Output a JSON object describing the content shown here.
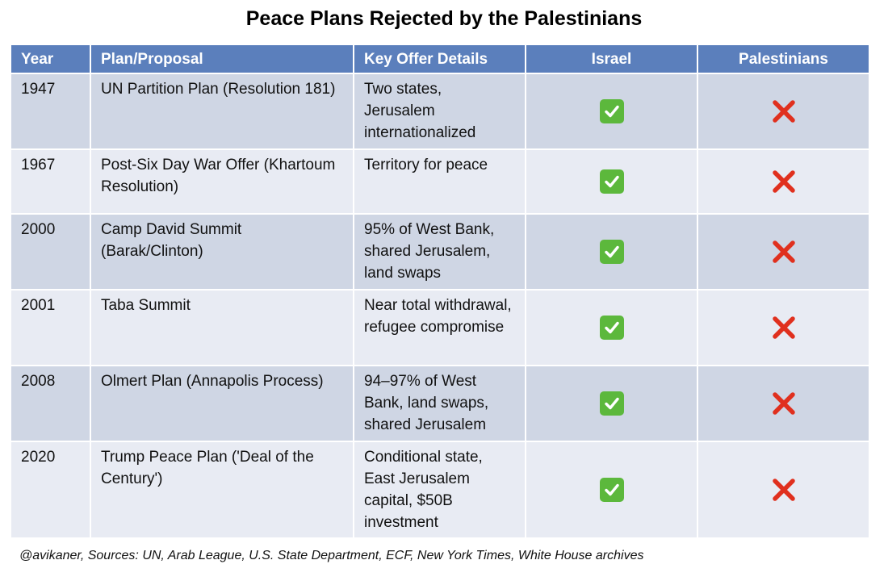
{
  "title": "Peace Plans Rejected by the Palestinians",
  "table": {
    "headers": [
      "Year",
      "Plan/Proposal",
      "Key Offer Details",
      "Israel",
      "Palestinians"
    ],
    "rows": [
      {
        "year": "1947",
        "plan": "UN Partition Plan (Resolution 181)",
        "details": "Two states, Jerusalem internationalized",
        "israel": "check-mark-icon",
        "palestinians": "cross-mark-icon"
      },
      {
        "year": "1967",
        "plan": "Post-Six Day War Offer (Khartoum Resolution)",
        "details": "Territory for peace",
        "israel": "check-mark-icon",
        "palestinians": "cross-mark-icon"
      },
      {
        "year": "2000",
        "plan": "Camp David Summit (Barak/Clinton)",
        "details": "95% of West Bank, shared Jerusalem, land swaps",
        "israel": "check-mark-icon",
        "palestinians": "cross-mark-icon"
      },
      {
        "year": "2001",
        "plan": "Taba Summit",
        "details": "Near total withdrawal, refugee compromise",
        "israel": "check-mark-icon",
        "palestinians": "cross-mark-icon"
      },
      {
        "year": "2008",
        "plan": "Olmert Plan (Annapolis Process)",
        "details": "94–97% of West Bank, land swaps, shared Jerusalem",
        "israel": "check-mark-icon",
        "palestinians": "cross-mark-icon"
      },
      {
        "year": "2020",
        "plan": "Trump Peace Plan ('Deal of the Century')",
        "details": "Conditional state, East Jerusalem capital, $50B investment",
        "israel": "check-mark-icon",
        "palestinians": "cross-mark-icon"
      }
    ]
  },
  "footer": "@avikaner, Sources: UN, Arab League, U.S. State Department, ECF, New York Times, White House archives",
  "colors": {
    "header_bg": "#5b7fbc",
    "row_odd_bg": "#cfd6e4",
    "row_even_bg": "#e8ebf3",
    "check_bg": "#5cb83c",
    "cross": "#e0301e"
  }
}
